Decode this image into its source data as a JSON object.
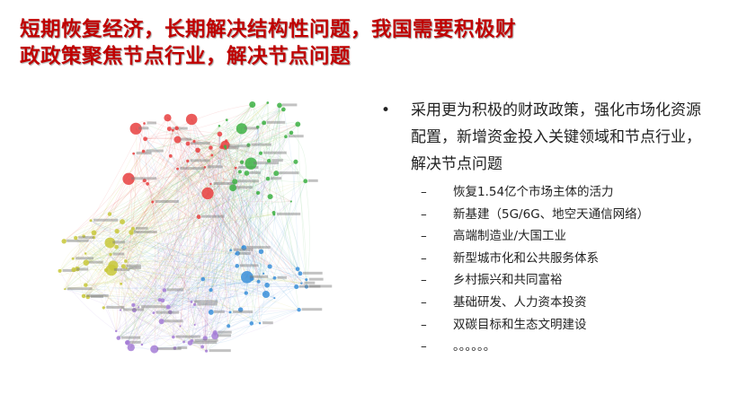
{
  "title": {
    "line1": "短期恢复经济，长期解决结构性问题，我国需要积极财",
    "line2": "政政策聚焦节点行业，解决节点问题"
  },
  "network_image": {
    "cluster_colors": [
      "#e8403f",
      "#3cb043",
      "#3a8fd9",
      "#c8c83a",
      "#a57cd6"
    ]
  },
  "bullets": {
    "main": "采用更为积极的财政政策，强化市场化资源配置，新增资金投入关键领域和节点行业，解决节点问题",
    "bullet_symbol": "•",
    "dash_symbol": "–",
    "sub_items": [
      "恢复1.54亿个市场主体的活力",
      "新基建（5G/6G、地空天通信网络）",
      "高端制造业/大国工业",
      "新型城市化和公共服务体系",
      "乡村振兴和共同富裕",
      "基础研发、人力资本投资",
      "双碳目标和生态文明建设",
      "。。。。。。"
    ]
  }
}
